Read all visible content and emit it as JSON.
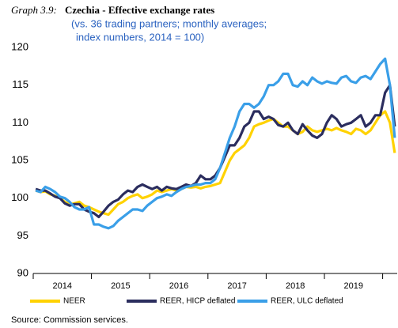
{
  "chart_data": {
    "type": "line",
    "title_label": "Graph 3.9:",
    "title": "Czechia - Effective exchange rates",
    "subtitle": [
      "(vs. 36 trading partners;  monthly averages;",
      "index numbers, 2014 = 100)"
    ],
    "source": "Source: Commission services.",
    "categories": [
      null,
      null,
      null,
      null,
      null,
      null,
      "2014",
      null,
      null,
      null,
      null,
      null,
      null,
      null,
      null,
      null,
      null,
      null,
      "2015",
      null,
      null,
      null,
      null,
      null,
      null,
      null,
      null,
      null,
      null,
      null,
      "2016",
      null,
      null,
      null,
      null,
      null,
      null,
      null,
      null,
      null,
      null,
      null,
      "2017",
      null,
      null,
      null,
      null,
      null,
      null,
      null,
      null,
      null,
      null,
      null,
      "2018",
      null,
      null,
      null,
      null,
      null,
      null,
      null,
      null,
      null,
      null,
      null,
      "2019",
      null,
      null,
      null,
      null,
      null,
      null,
      null,
      null
    ],
    "ylim": [
      90,
      120
    ],
    "yticks": [
      90,
      95,
      100,
      105,
      110,
      115,
      120
    ],
    "grid": false,
    "series": [
      {
        "name": "NEER",
        "color": "#FFD200",
        "values": [
          101,
          100.8,
          100.9,
          100.5,
          100.3,
          100,
          99.5,
          99.2,
          99.3,
          99.5,
          99,
          98.8,
          98.5,
          98.2,
          98,
          97.8,
          98.5,
          99.2,
          99.5,
          100,
          100.3,
          100.5,
          100,
          100.2,
          100.5,
          101,
          100.8,
          101,
          101.2,
          101,
          101.2,
          101.5,
          101.4,
          101.5,
          101.3,
          101.5,
          101.6,
          101.8,
          102,
          103.5,
          105,
          106,
          106.5,
          107,
          108,
          109.5,
          109.8,
          110,
          110.3,
          110.5,
          110,
          109.5,
          109.5,
          109,
          108.5,
          108.8,
          109.5,
          109,
          108.8,
          109,
          109.2,
          109,
          109.3,
          109,
          108.8,
          108.5,
          109.2,
          109,
          108.5,
          109,
          110,
          111,
          111.5,
          110,
          106
        ]
      },
      {
        "name": "REER, HICP deflated",
        "color": "#2B2D5E",
        "values": [
          101.2,
          101,
          101,
          100.6,
          100.2,
          100,
          99.3,
          99,
          99.2,
          99.2,
          98.5,
          98.2,
          98,
          97.5,
          98.2,
          99,
          99.5,
          99.8,
          100.5,
          101,
          100.8,
          101.5,
          101.8,
          101.5,
          101.2,
          101.5,
          101,
          101.5,
          101.3,
          101.2,
          101.5,
          101.8,
          101.6,
          102,
          103,
          102.5,
          102.5,
          103,
          104,
          105.5,
          107,
          107,
          108,
          109.5,
          110,
          111.5,
          111.5,
          110.5,
          110.8,
          110.5,
          109.7,
          109.5,
          110,
          109,
          108.5,
          109.8,
          109,
          108.3,
          108,
          108.5,
          110,
          111,
          110.5,
          109.5,
          109.8,
          110,
          110.5,
          111,
          109.5,
          110,
          111,
          111,
          114,
          115,
          109.5
        ]
      },
      {
        "name": "REER, ULC deflated",
        "color": "#3A9FE8",
        "values": [
          101,
          100.8,
          101.5,
          101.2,
          100.8,
          100.2,
          100,
          99.5,
          98.8,
          98.5,
          98.5,
          98.8,
          96.5,
          96.5,
          96.2,
          96,
          96.3,
          97,
          97.5,
          98,
          98.5,
          98.5,
          98.3,
          99,
          99.5,
          100,
          100.2,
          100.5,
          100.3,
          100.8,
          101.2,
          101.5,
          101.6,
          101.8,
          101.8,
          102,
          102,
          102.5,
          104,
          106,
          108,
          109.5,
          111.5,
          112.5,
          112.5,
          112,
          112.5,
          113.5,
          115,
          115,
          115.5,
          116.5,
          116.5,
          115,
          114.8,
          115.5,
          115,
          116,
          115.5,
          115.2,
          115.5,
          115.3,
          115.2,
          116,
          116.2,
          115.5,
          115.3,
          116,
          116.2,
          115.8,
          116.8,
          117.8,
          118.5,
          115,
          108
        ]
      }
    ]
  }
}
